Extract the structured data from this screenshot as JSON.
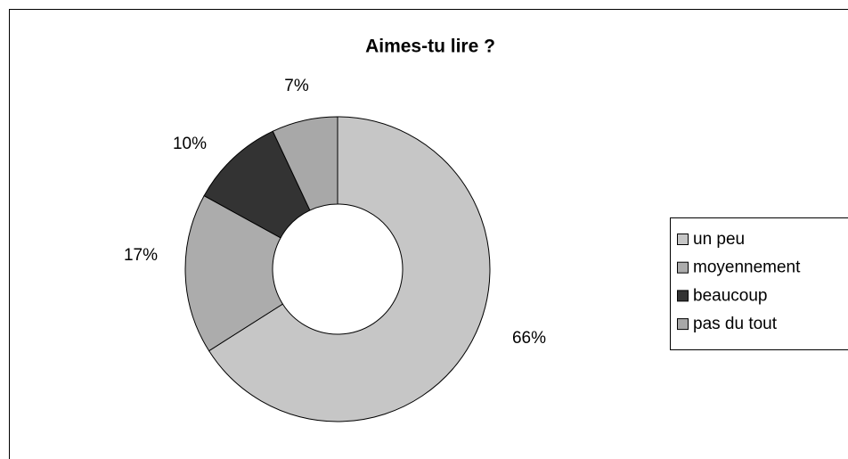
{
  "chart_data": {
    "type": "donut",
    "title": "Aimes-tu lire ?",
    "categories": [
      "un peu",
      "moyennement",
      "beaucoup",
      "pas du tout"
    ],
    "values": [
      66,
      17,
      10,
      7
    ],
    "value_labels": [
      "66%",
      "17%",
      "10%",
      "7%"
    ],
    "colors": [
      "#c6c6c6",
      "#acacac",
      "#333333",
      "#a8a8a8"
    ],
    "legend": "right"
  }
}
